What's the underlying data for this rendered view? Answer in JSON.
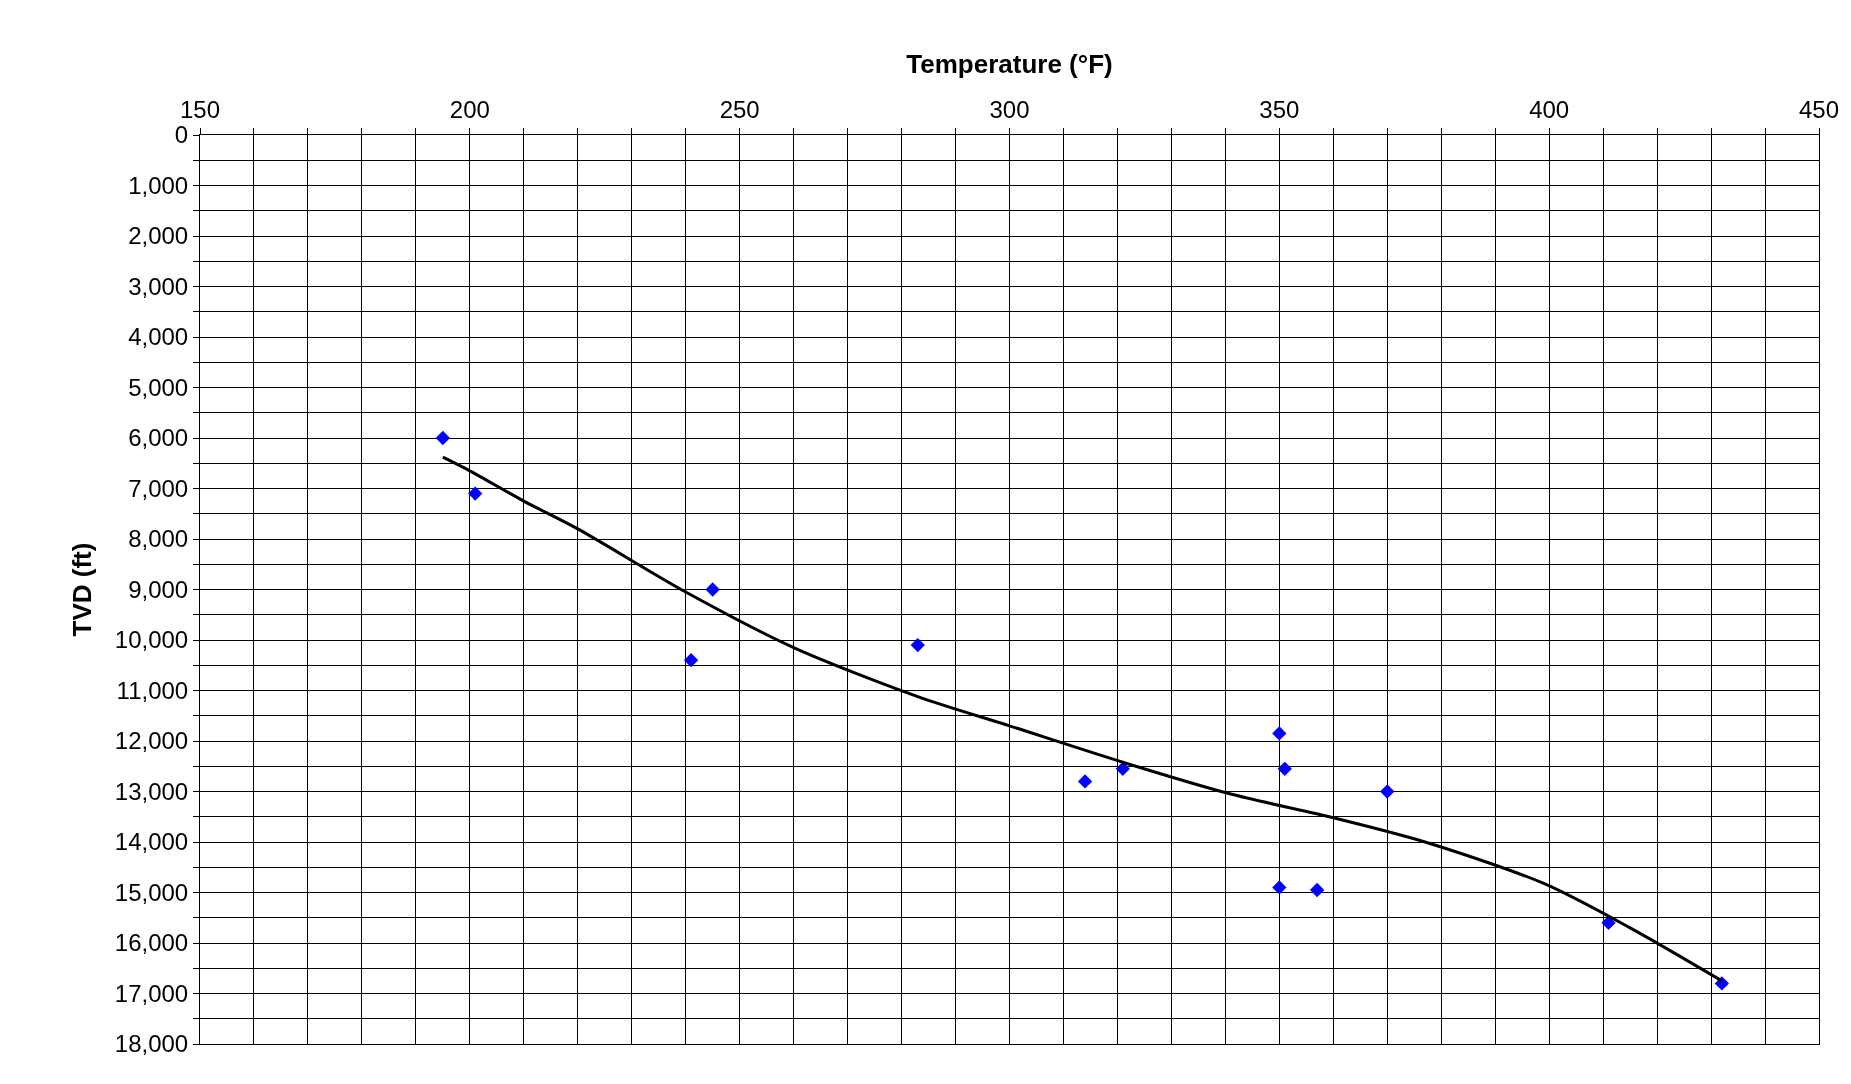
{
  "chart_data": {
    "type": "scatter",
    "xlabel": "Temperature (°F)",
    "ylabel": "TVD (ft)",
    "xlim": [
      150,
      450
    ],
    "ylim": [
      18000,
      0
    ],
    "xticks": [
      150,
      {
        "value": 160,
        "label": null
      },
      {
        "value": 170,
        "label": null
      },
      {
        "value": 180,
        "label": null
      },
      {
        "value": 190,
        "label": null
      },
      200,
      {
        "value": 210,
        "label": null
      },
      {
        "value": 220,
        "label": null
      },
      {
        "value": 230,
        "label": null
      },
      {
        "value": 240,
        "label": null
      },
      250,
      {
        "value": 260,
        "label": null
      },
      {
        "value": 270,
        "label": null
      },
      {
        "value": 280,
        "label": null
      },
      {
        "value": 290,
        "label": null
      },
      300,
      {
        "value": 310,
        "label": null
      },
      {
        "value": 320,
        "label": null
      },
      {
        "value": 330,
        "label": null
      },
      {
        "value": 340,
        "label": null
      },
      350,
      {
        "value": 360,
        "label": null
      },
      {
        "value": 370,
        "label": null
      },
      {
        "value": 380,
        "label": null
      },
      {
        "value": 390,
        "label": null
      },
      400,
      {
        "value": 410,
        "label": null
      },
      {
        "value": 420,
        "label": null
      },
      {
        "value": 430,
        "label": null
      },
      {
        "value": 440,
        "label": null
      },
      450
    ],
    "yticks": [
      {
        "value": 0,
        "label": "0"
      },
      {
        "value": 500,
        "label": null
      },
      {
        "value": 1000,
        "label": "1,000"
      },
      {
        "value": 1500,
        "label": null
      },
      {
        "value": 2000,
        "label": "2,000"
      },
      {
        "value": 2500,
        "label": null
      },
      {
        "value": 3000,
        "label": "3,000"
      },
      {
        "value": 3500,
        "label": null
      },
      {
        "value": 4000,
        "label": "4,000"
      },
      {
        "value": 4500,
        "label": null
      },
      {
        "value": 5000,
        "label": "5,000"
      },
      {
        "value": 5500,
        "label": null
      },
      {
        "value": 6000,
        "label": "6,000"
      },
      {
        "value": 6500,
        "label": null
      },
      {
        "value": 7000,
        "label": "7,000"
      },
      {
        "value": 7500,
        "label": null
      },
      {
        "value": 8000,
        "label": "8,000"
      },
      {
        "value": 8500,
        "label": null
      },
      {
        "value": 9000,
        "label": "9,000"
      },
      {
        "value": 9500,
        "label": null
      },
      {
        "value": 10000,
        "label": "10,000"
      },
      {
        "value": 10500,
        "label": null
      },
      {
        "value": 11000,
        "label": "11,000"
      },
      {
        "value": 11500,
        "label": null
      },
      {
        "value": 12000,
        "label": "12,000"
      },
      {
        "value": 12500,
        "label": null
      },
      {
        "value": 13000,
        "label": "13,000"
      },
      {
        "value": 13500,
        "label": null
      },
      {
        "value": 14000,
        "label": "14,000"
      },
      {
        "value": 14500,
        "label": null
      },
      {
        "value": 15000,
        "label": "15,000"
      },
      {
        "value": 15500,
        "label": null
      },
      {
        "value": 16000,
        "label": "16,000"
      },
      {
        "value": 16500,
        "label": null
      },
      {
        "value": 17000,
        "label": "17,000"
      },
      {
        "value": 17500,
        "label": null
      },
      {
        "value": 18000,
        "label": "18,000"
      }
    ],
    "grid": true,
    "series": [
      {
        "marker": "diamond",
        "color": "#0000ff",
        "x": [
          195,
          201,
          245,
          241,
          283,
          314,
          321,
          350,
          351,
          370,
          350,
          357,
          411,
          432
        ],
        "values": [
          6000,
          7100,
          9000,
          10400,
          10100,
          12800,
          12550,
          11850,
          12550,
          13000,
          14900,
          14950,
          15600,
          16800
        ]
      },
      {
        "type": "line",
        "marker": "none",
        "line_style": "solid",
        "color": "#000000",
        "x": [
          195,
          200,
          210,
          220,
          240,
          260,
          283,
          300,
          321,
          341,
          360,
          377,
          399,
          415,
          432
        ],
        "values": [
          6380,
          6650,
          7250,
          7800,
          9050,
          10150,
          11120,
          11700,
          12420,
          13050,
          13520,
          14000,
          14820,
          15700,
          16750
        ]
      }
    ]
  }
}
